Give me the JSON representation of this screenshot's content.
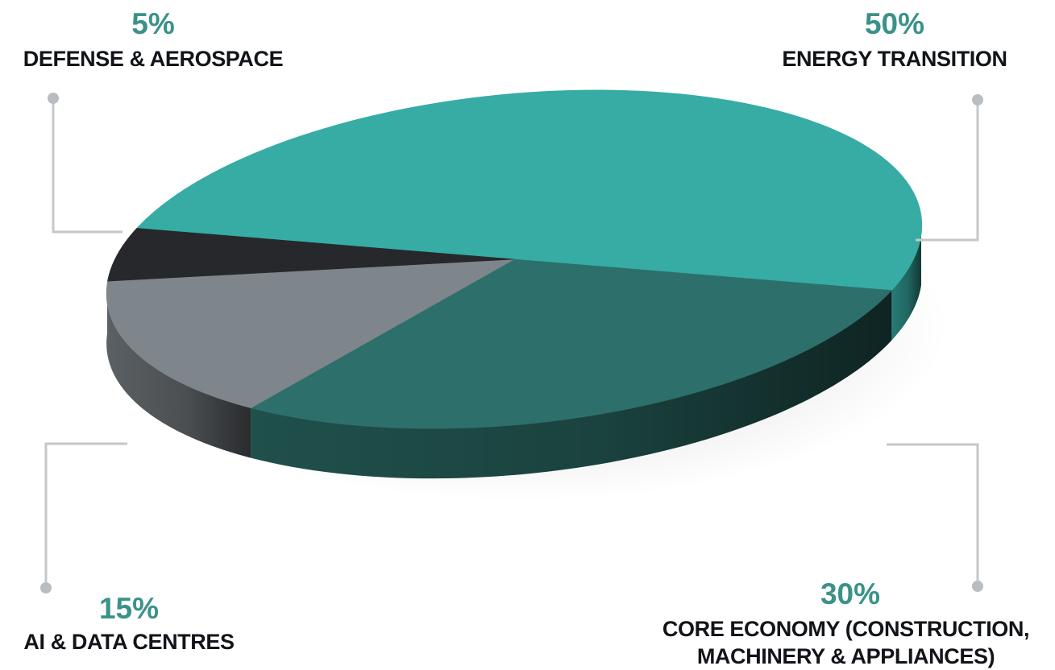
{
  "chart_data": {
    "type": "pie",
    "style": "3d-exploded-tilted",
    "slices": [
      {
        "label": "ENERGY TRANSITION",
        "value": 50,
        "value_label": "50%",
        "color": "#36aca4"
      },
      {
        "label_lines": [
          "CORE ECONOMY (CONSTRUCTION,",
          "MACHINERY & APPLIANCES)"
        ],
        "value": 30,
        "value_label": "30%",
        "color": "#2d6f6a"
      },
      {
        "label": "AI & DATA CENTRES",
        "value": 15,
        "value_label": "15%",
        "color": "#7e858b"
      },
      {
        "label": "DEFENSE & AEROSPACE",
        "value": 5,
        "value_label": "5%",
        "color": "#26282c"
      }
    ],
    "legend": "none",
    "percent_color": "#3a9288",
    "leader_line_color": "#c4c7ca"
  }
}
